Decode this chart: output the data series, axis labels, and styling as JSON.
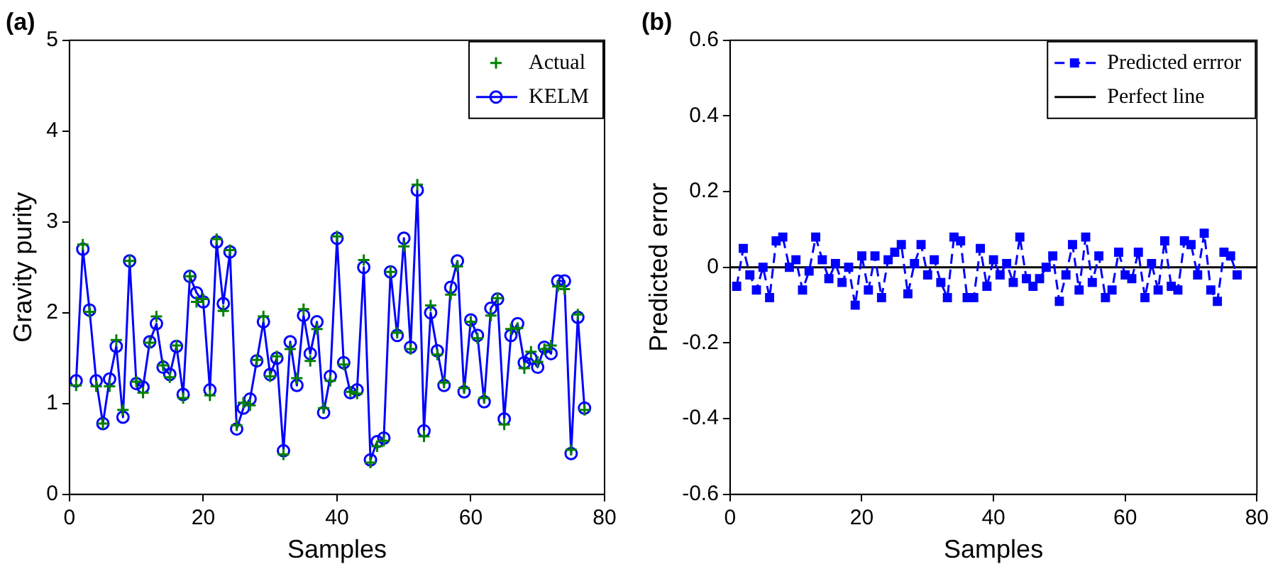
{
  "chart_data": [
    {
      "type": "line",
      "title": "(a)",
      "xlabel": "Samples",
      "ylabel": "Gravity purity",
      "xlim": [
        0,
        80
      ],
      "xticks": [
        0,
        20,
        40,
        60,
        80
      ],
      "ylim": [
        0,
        5
      ],
      "yticks": [
        0,
        1,
        2,
        3,
        4,
        5
      ],
      "grid": false,
      "legend": "top right",
      "x": [
        1,
        2,
        3,
        4,
        5,
        6,
        7,
        8,
        9,
        10,
        11,
        12,
        13,
        14,
        15,
        16,
        17,
        18,
        19,
        20,
        21,
        22,
        23,
        24,
        25,
        26,
        27,
        28,
        29,
        30,
        31,
        32,
        33,
        34,
        35,
        36,
        37,
        38,
        39,
        40,
        41,
        42,
        43,
        44,
        45,
        46,
        47,
        48,
        49,
        50,
        51,
        52,
        53,
        54,
        55,
        56,
        57,
        58,
        59,
        60,
        61,
        62,
        63,
        64,
        65,
        66,
        67,
        68,
        69,
        70,
        71,
        72,
        73,
        74,
        75,
        76,
        77
      ],
      "series": [
        {
          "name": "Actual",
          "type": "scatter",
          "marker": "cross",
          "color": "#008000",
          "values": [
            1.2,
            2.75,
            2.01,
            1.19,
            0.78,
            1.19,
            1.7,
            0.93,
            2.57,
            1.24,
            1.12,
            1.67,
            1.96,
            1.42,
            1.29,
            1.64,
            1.06,
            2.4,
            2.12,
            2.15,
            1.09,
            2.81,
            2.02,
            2.69,
            0.76,
            1.01,
            0.98,
            1.48,
            1.96,
            1.3,
            1.52,
            0.44,
            1.6,
            1.28,
            2.04,
            1.47,
            1.82,
            0.95,
            1.25,
            2.84,
            1.43,
            1.13,
            1.11,
            2.58,
            0.35,
            0.53,
            0.59,
            2.45,
            1.78,
            2.73,
            1.6,
            3.41,
            0.64,
            2.08,
            1.54,
            1.23,
            2.2,
            2.51,
            1.17,
            1.9,
            1.72,
            1.06,
            1.97,
            2.16,
            0.77,
            1.82,
            1.83,
            1.39,
            1.57,
            1.46,
            1.6,
            1.64,
            2.29,
            2.26,
            0.49,
            1.98,
            0.93
          ]
        },
        {
          "name": "KELM",
          "type": "line",
          "marker": "circle",
          "line_style": "solid",
          "color": "#0000ff",
          "values": [
            1.25,
            2.7,
            2.03,
            1.25,
            0.78,
            1.27,
            1.63,
            0.85,
            2.57,
            1.22,
            1.18,
            1.68,
            1.88,
            1.4,
            1.32,
            1.63,
            1.1,
            2.4,
            2.22,
            2.12,
            1.15,
            2.78,
            2.1,
            2.67,
            0.72,
            0.95,
            1.05,
            1.47,
            1.9,
            1.32,
            1.5,
            0.48,
            1.68,
            1.2,
            1.97,
            1.55,
            1.9,
            0.9,
            1.3,
            2.82,
            1.45,
            1.12,
            1.15,
            2.5,
            0.38,
            0.58,
            0.62,
            2.45,
            1.75,
            2.82,
            1.62,
            3.35,
            0.7,
            2.0,
            1.58,
            1.2,
            2.28,
            2.57,
            1.13,
            1.92,
            1.75,
            1.02,
            2.05,
            2.15,
            0.83,
            1.75,
            1.88,
            1.45,
            1.5,
            1.4,
            1.62,
            1.55,
            2.35,
            2.35,
            0.45,
            1.95,
            0.95
          ]
        }
      ]
    },
    {
      "type": "line",
      "title": "(b)",
      "xlabel": "Samples",
      "ylabel": "Predicted error",
      "xlim": [
        0,
        80
      ],
      "xticks": [
        0,
        20,
        40,
        60,
        80
      ],
      "ylim": [
        -0.6,
        0.6
      ],
      "yticks": [
        -0.6,
        -0.4,
        -0.2,
        0,
        0.2,
        0.4,
        0.6
      ],
      "grid": false,
      "legend": "top right",
      "x": [
        1,
        2,
        3,
        4,
        5,
        6,
        7,
        8,
        9,
        10,
        11,
        12,
        13,
        14,
        15,
        16,
        17,
        18,
        19,
        20,
        21,
        22,
        23,
        24,
        25,
        26,
        27,
        28,
        29,
        30,
        31,
        32,
        33,
        34,
        35,
        36,
        37,
        38,
        39,
        40,
        41,
        42,
        43,
        44,
        45,
        46,
        47,
        48,
        49,
        50,
        51,
        52,
        53,
        54,
        55,
        56,
        57,
        58,
        59,
        60,
        61,
        62,
        63,
        64,
        65,
        66,
        67,
        68,
        69,
        70,
        71,
        72,
        73,
        74,
        75,
        76,
        77
      ],
      "series": [
        {
          "name": "Predicted errror",
          "type": "line",
          "marker": "square",
          "line_style": "dashed",
          "color": "#0000ff",
          "values": [
            -0.05,
            0.05,
            -0.02,
            -0.06,
            0,
            -0.08,
            0.07,
            0.08,
            0,
            0.02,
            -0.06,
            -0.01,
            0.08,
            0.02,
            -0.03,
            0.01,
            -0.04,
            0,
            -0.1,
            0.03,
            -0.06,
            0.03,
            -0.08,
            0.02,
            0.04,
            0.06,
            -0.07,
            0.01,
            0.06,
            -0.02,
            0.02,
            -0.04,
            -0.08,
            0.08,
            0.07,
            -0.08,
            -0.08,
            0.05,
            -0.05,
            0.02,
            -0.02,
            0.01,
            -0.04,
            0.08,
            -0.03,
            -0.05,
            -0.03,
            0,
            0.03,
            -0.09,
            -0.02,
            0.06,
            -0.06,
            0.08,
            -0.04,
            0.03,
            -0.08,
            -0.06,
            0.04,
            -0.02,
            -0.03,
            0.04,
            -0.08,
            0.01,
            -0.06,
            0.07,
            -0.05,
            -0.06,
            0.07,
            0.06,
            -0.02,
            0.09,
            -0.06,
            -0.09,
            0.04,
            0.03,
            -0.02
          ]
        },
        {
          "name": "Perfect line",
          "type": "line",
          "marker": "none",
          "line_style": "solid",
          "color": "#000000",
          "x": [
            0,
            80
          ],
          "values": [
            0,
            0
          ]
        }
      ]
    }
  ]
}
